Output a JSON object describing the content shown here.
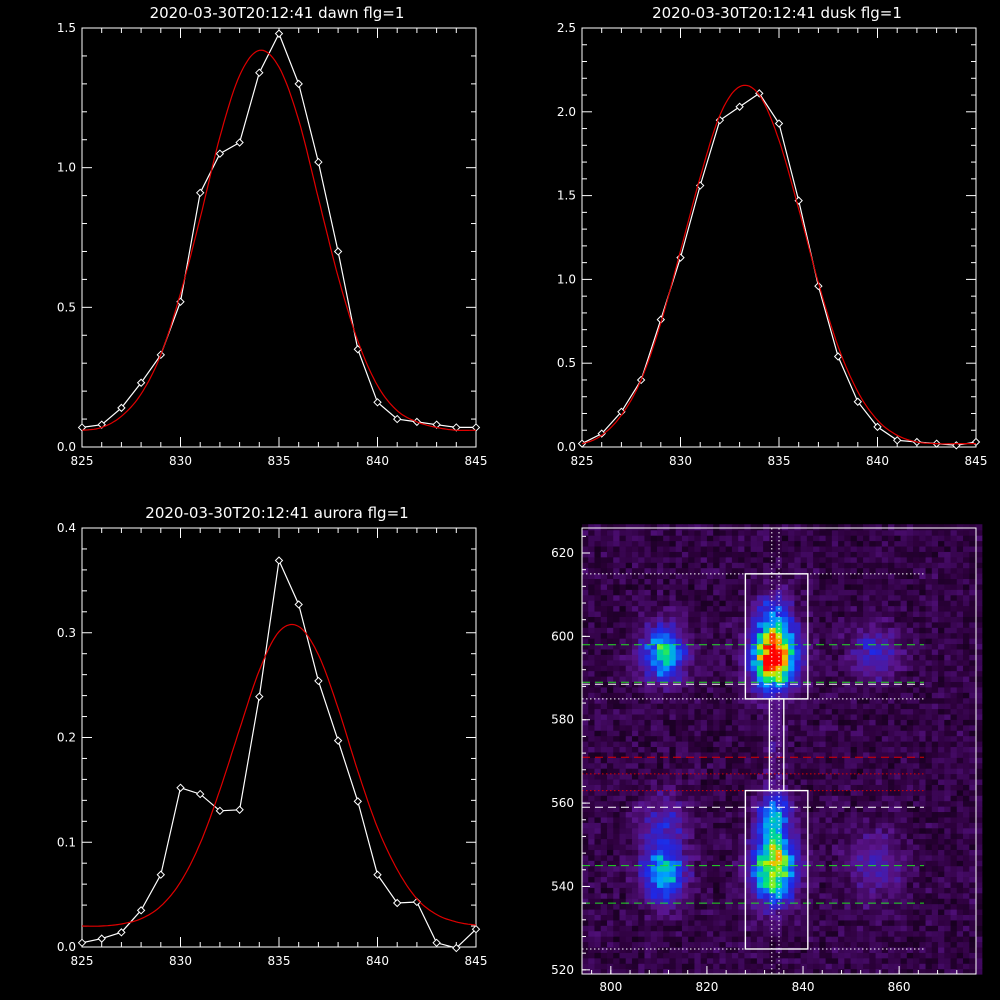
{
  "chart_data": [
    {
      "type": "line",
      "title": "2020-03-30T20:12:41 dawn flg=1",
      "xlim": [
        825,
        845
      ],
      "ylim": [
        0,
        1.5
      ],
      "xticks": [
        825,
        830,
        835,
        840,
        845
      ],
      "yticks": [
        0.0,
        0.5,
        1.0,
        1.5
      ],
      "series": [
        {
          "color": "#ffffff",
          "markers": "diamond",
          "x": [
            825,
            826,
            827,
            828,
            829,
            830,
            831,
            832,
            833,
            834,
            835,
            836,
            837,
            838,
            839,
            840,
            841,
            842,
            843,
            844,
            845
          ],
          "y": [
            0.07,
            0.08,
            0.14,
            0.23,
            0.33,
            0.52,
            0.91,
            1.05,
            1.09,
            1.34,
            1.48,
            1.3,
            1.02,
            0.7,
            0.35,
            0.16,
            0.1,
            0.09,
            0.08,
            0.07,
            0.07
          ]
        },
        {
          "color": "#e00000",
          "fit": "gaussian",
          "x": [
            825,
            826,
            827,
            828,
            829,
            830,
            831,
            832,
            833,
            834,
            835,
            836,
            837,
            838,
            839,
            840,
            841,
            842,
            843,
            844,
            845
          ],
          "y": [
            0.06,
            0.07,
            0.11,
            0.19,
            0.33,
            0.55,
            0.82,
            1.11,
            1.33,
            1.42,
            1.36,
            1.17,
            0.89,
            0.61,
            0.38,
            0.22,
            0.13,
            0.09,
            0.07,
            0.06,
            0.06
          ]
        }
      ]
    },
    {
      "type": "line",
      "title": "2020-03-30T20:12:41 dusk flg=1",
      "xlim": [
        825,
        845
      ],
      "ylim": [
        0,
        2.5
      ],
      "xticks": [
        825,
        830,
        835,
        840,
        845
      ],
      "yticks": [
        0.0,
        0.5,
        1.0,
        1.5,
        2.0,
        2.5
      ],
      "series": [
        {
          "color": "#ffffff",
          "markers": "diamond",
          "x": [
            825,
            826,
            827,
            828,
            829,
            830,
            831,
            832,
            833,
            834,
            835,
            836,
            837,
            838,
            839,
            840,
            841,
            842,
            843,
            844,
            845
          ],
          "y": [
            0.02,
            0.08,
            0.21,
            0.4,
            0.76,
            1.13,
            1.56,
            1.95,
            2.03,
            2.11,
            1.93,
            1.47,
            0.96,
            0.54,
            0.27,
            0.12,
            0.04,
            0.03,
            0.02,
            0.01,
            0.03
          ]
        },
        {
          "color": "#e00000",
          "fit": "gaussian",
          "x": [
            825,
            826,
            827,
            828,
            829,
            830,
            831,
            832,
            833,
            834,
            835,
            836,
            837,
            838,
            839,
            840,
            841,
            842,
            843,
            844,
            845
          ],
          "y": [
            0.02,
            0.07,
            0.19,
            0.4,
            0.74,
            1.17,
            1.61,
            1.98,
            2.15,
            2.1,
            1.83,
            1.42,
            0.98,
            0.6,
            0.33,
            0.16,
            0.07,
            0.03,
            0.02,
            0.02,
            0.02
          ]
        }
      ]
    },
    {
      "type": "line",
      "title": "2020-03-30T20:12:41 aurora flg=1",
      "xlim": [
        825,
        845
      ],
      "ylim": [
        0,
        0.4
      ],
      "xticks": [
        825,
        830,
        835,
        840,
        845
      ],
      "yticks": [
        0.0,
        0.1,
        0.2,
        0.3,
        0.4
      ],
      "series": [
        {
          "color": "#ffffff",
          "markers": "diamond",
          "x": [
            825,
            826,
            827,
            828,
            829,
            830,
            831,
            832,
            833,
            834,
            835,
            836,
            837,
            838,
            839,
            840,
            841,
            842,
            843,
            844,
            845
          ],
          "y": [
            0.004,
            0.008,
            0.014,
            0.035,
            0.069,
            0.152,
            0.146,
            0.13,
            0.131,
            0.239,
            0.369,
            0.327,
            0.254,
            0.197,
            0.139,
            0.069,
            0.042,
            0.043,
            0.004,
            -0.001,
            0.017
          ]
        },
        {
          "color": "#e00000",
          "fit": "gaussian",
          "x": [
            825,
            826,
            827,
            828,
            829,
            830,
            831,
            832,
            833,
            834,
            835,
            836,
            837,
            838,
            839,
            840,
            841,
            842,
            843,
            844,
            845
          ],
          "y": [
            0.02,
            0.02,
            0.022,
            0.027,
            0.039,
            0.062,
            0.099,
            0.15,
            0.208,
            0.264,
            0.301,
            0.306,
            0.279,
            0.228,
            0.168,
            0.114,
            0.074,
            0.046,
            0.031,
            0.024,
            0.021
          ]
        }
      ]
    },
    {
      "type": "heatmap",
      "xlim": [
        794,
        876
      ],
      "ylim": [
        519,
        626
      ],
      "xticks": [
        800,
        820,
        840,
        860
      ],
      "yticks": [
        520,
        540,
        560,
        580,
        600,
        620
      ],
      "blobs": [
        {
          "x": 811,
          "y": 596,
          "sx": 3.0,
          "sy": 4.5,
          "amp": 0.55
        },
        {
          "x": 834,
          "y": 595,
          "sx": 3.2,
          "sy": 5.0,
          "amp": 1.0
        },
        {
          "x": 834,
          "y": 605,
          "sx": 2.5,
          "sy": 4.0,
          "amp": 0.3
        },
        {
          "x": 855,
          "y": 596,
          "sx": 3.5,
          "sy": 4.5,
          "amp": 0.22
        },
        {
          "x": 811,
          "y": 543,
          "sx": 3.0,
          "sy": 4.5,
          "amp": 0.5
        },
        {
          "x": 834,
          "y": 545,
          "sx": 3.0,
          "sy": 6.0,
          "amp": 0.78
        },
        {
          "x": 834,
          "y": 558,
          "sx": 2.2,
          "sy": 3.5,
          "amp": 0.4
        },
        {
          "x": 811,
          "y": 555,
          "sx": 3.5,
          "sy": 5.0,
          "amp": 0.2
        },
        {
          "x": 855,
          "y": 545,
          "sx": 4.0,
          "sy": 6.0,
          "amp": 0.16
        },
        {
          "x": 834,
          "y": 574,
          "sx": 1.4,
          "sy": 6.0,
          "amp": 0.12
        }
      ],
      "boxes": [
        {
          "x0": 828,
          "x1": 841,
          "y0": 585,
          "y1": 615,
          "color": "#ffffff"
        },
        {
          "x0": 828,
          "x1": 841,
          "y0": 525,
          "y1": 563,
          "color": "#ffffff"
        },
        {
          "x0": 833,
          "x1": 836,
          "y0": 563,
          "y1": 585,
          "color": "#ffffff"
        }
      ],
      "hlines": [
        {
          "y": 615,
          "color": "#ffffff",
          "style": "dotted"
        },
        {
          "y": 598,
          "color": "#22dd22",
          "style": "dashed"
        },
        {
          "y": 589,
          "color": "#22dd22",
          "style": "dashed"
        },
        {
          "y": 588.5,
          "color": "#ffffff",
          "style": "dashed"
        },
        {
          "y": 585,
          "color": "#ffffff",
          "style": "dotted"
        },
        {
          "y": 571,
          "color": "#dd0000",
          "style": "dashed"
        },
        {
          "y": 567,
          "color": "#dd0000",
          "style": "dotted"
        },
        {
          "y": 563,
          "color": "#dd0000",
          "style": "dotted"
        },
        {
          "y": 559,
          "color": "#ffffff",
          "style": "dashed"
        },
        {
          "y": 545,
          "color": "#22dd22",
          "style": "dashed"
        },
        {
          "y": 536,
          "color": "#22dd22",
          "style": "dashed"
        },
        {
          "y": 525,
          "color": "#ffffff",
          "style": "dotted"
        }
      ],
      "vlines": [
        {
          "x": 833.5,
          "color": "#ffffff",
          "style": "dotted"
        },
        {
          "x": 835,
          "color": "#ffffff",
          "style": "dotted"
        }
      ]
    }
  ]
}
